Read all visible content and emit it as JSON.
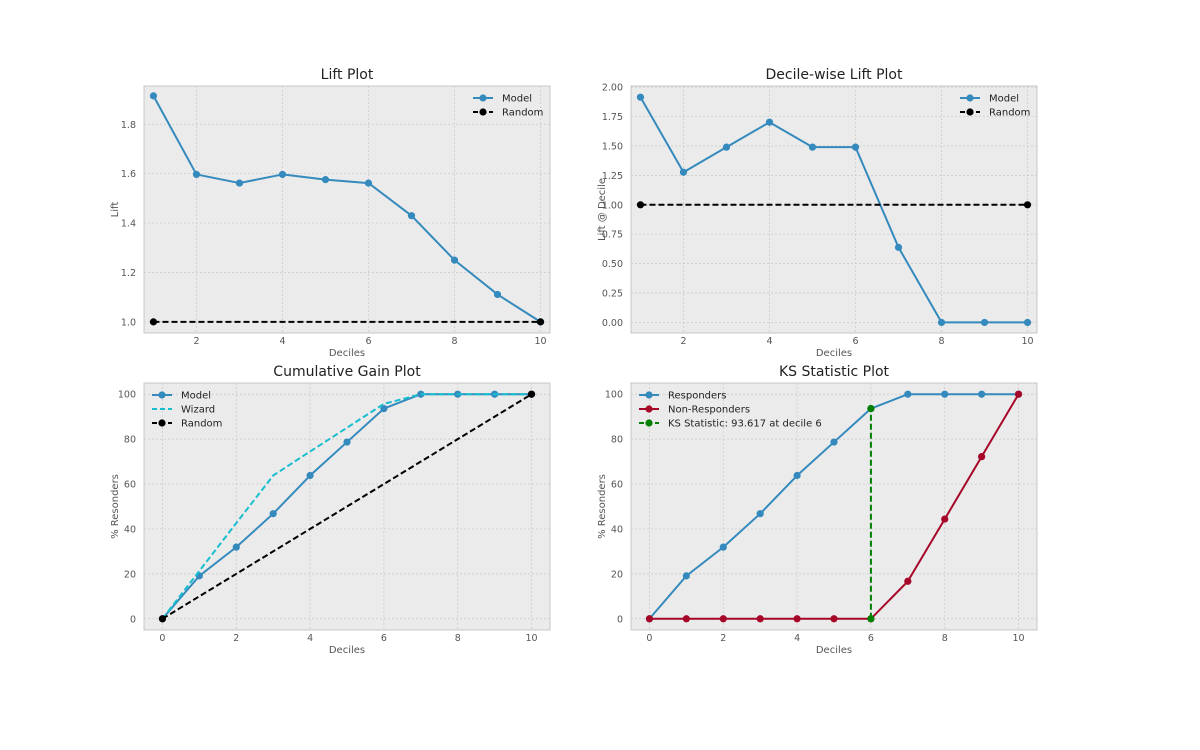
{
  "chart_data": [
    {
      "type": "line",
      "title": "Lift Plot",
      "xlabel": "Deciles",
      "ylabel": "Lift",
      "xlim": [
        0.78,
        10.22
      ],
      "ylim": [
        0.955,
        1.955
      ],
      "xticks": [
        2,
        4,
        6,
        8,
        10
      ],
      "yticks": [
        1.0,
        1.2,
        1.4,
        1.6,
        1.8
      ],
      "ytick_decimals": 1,
      "grid": true,
      "legend": "top-right",
      "series": [
        {
          "name": "Model",
          "color": "#348ABD",
          "dash": "solid",
          "marker": true,
          "x": [
            1,
            2,
            3,
            4,
            5,
            6,
            7,
            8,
            9,
            10
          ],
          "y": [
            1.915,
            1.597,
            1.562,
            1.597,
            1.576,
            1.562,
            1.43,
            1.25,
            1.111,
            1.0
          ]
        },
        {
          "name": "Random",
          "color": "#000000",
          "dash": "dashed",
          "marker": true,
          "x": [
            1,
            10
          ],
          "y": [
            1.0,
            1.0
          ]
        }
      ]
    },
    {
      "type": "line",
      "title": "Decile-wise Lift Plot",
      "xlabel": "Deciles",
      "ylabel": "Lift @ Decile",
      "xlim": [
        0.78,
        10.22
      ],
      "ylim": [
        -0.09,
        2.01
      ],
      "xticks": [
        2,
        4,
        6,
        8,
        10
      ],
      "yticks": [
        0.0,
        0.25,
        0.5,
        0.75,
        1.0,
        1.25,
        1.5,
        1.75,
        2.0
      ],
      "ytick_decimals": 2,
      "grid": true,
      "legend": "top-right",
      "series": [
        {
          "name": "Model",
          "color": "#348ABD",
          "dash": "solid",
          "marker": true,
          "x": [
            1,
            2,
            3,
            4,
            5,
            6,
            7,
            8,
            9,
            10
          ],
          "y": [
            1.915,
            1.277,
            1.49,
            1.702,
            1.49,
            1.49,
            0.638,
            0.0,
            0.0,
            0.0
          ]
        },
        {
          "name": "Random",
          "color": "#000000",
          "dash": "dashed",
          "marker": true,
          "x": [
            1,
            10
          ],
          "y": [
            1.0,
            1.0
          ]
        }
      ]
    },
    {
      "type": "line",
      "title": "Cumulative Gain Plot",
      "xlabel": "Deciles",
      "ylabel": "% Resonders",
      "xlim": [
        -0.5,
        10.5
      ],
      "ylim": [
        -5,
        105
      ],
      "xticks": [
        0,
        2,
        4,
        6,
        8,
        10
      ],
      "yticks": [
        0,
        20,
        40,
        60,
        80,
        100
      ],
      "ytick_decimals": 0,
      "grid": true,
      "legend": "top-left",
      "series": [
        {
          "name": "Model",
          "color": "#348ABD",
          "dash": "solid",
          "marker": true,
          "x": [
            0,
            1,
            2,
            3,
            4,
            5,
            6,
            7,
            8,
            9,
            10
          ],
          "y": [
            0,
            19.1,
            31.9,
            46.8,
            63.8,
            78.7,
            93.6,
            100,
            100,
            100,
            100
          ]
        },
        {
          "name": "Wizard",
          "color": "#17BECF",
          "dash": "dashed",
          "marker": false,
          "x": [
            0,
            1,
            2,
            3,
            4,
            5,
            6,
            7,
            8,
            9,
            10
          ],
          "y": [
            0,
            21.3,
            42.6,
            63.8,
            74.5,
            85.1,
            95.7,
            100,
            100,
            100,
            100
          ]
        },
        {
          "name": "Random",
          "color": "#000000",
          "dash": "dashed",
          "marker": true,
          "x": [
            0,
            10
          ],
          "y": [
            0,
            100
          ]
        }
      ]
    },
    {
      "type": "line",
      "title": "KS Statistic Plot",
      "xlabel": "Deciles",
      "ylabel": "% Resonders",
      "xlim": [
        -0.5,
        10.5
      ],
      "ylim": [
        -5,
        105
      ],
      "xticks": [
        0,
        2,
        4,
        6,
        8,
        10
      ],
      "yticks": [
        0,
        20,
        40,
        60,
        80,
        100
      ],
      "ytick_decimals": 0,
      "grid": true,
      "legend": "top-left",
      "series": [
        {
          "name": "Responders",
          "color": "#348ABD",
          "dash": "solid",
          "marker": true,
          "x": [
            0,
            1,
            2,
            3,
            4,
            5,
            6,
            7,
            8,
            9,
            10
          ],
          "y": [
            0,
            19.1,
            31.9,
            46.8,
            63.8,
            78.7,
            93.6,
            100,
            100,
            100,
            100
          ]
        },
        {
          "name": "Non-Responders",
          "color": "#A60628",
          "dash": "solid",
          "marker": true,
          "x": [
            0,
            1,
            2,
            3,
            4,
            5,
            6,
            7,
            8,
            9,
            10
          ],
          "y": [
            0,
            0,
            0,
            0,
            0,
            0,
            0,
            16.7,
            44.4,
            72.2,
            100
          ]
        },
        {
          "name": "KS Statistic: 93.617 at decile 6",
          "color": "#008000",
          "dash": "dashed",
          "marker": true,
          "x": [
            6,
            6
          ],
          "y": [
            0,
            93.6
          ]
        }
      ]
    }
  ]
}
